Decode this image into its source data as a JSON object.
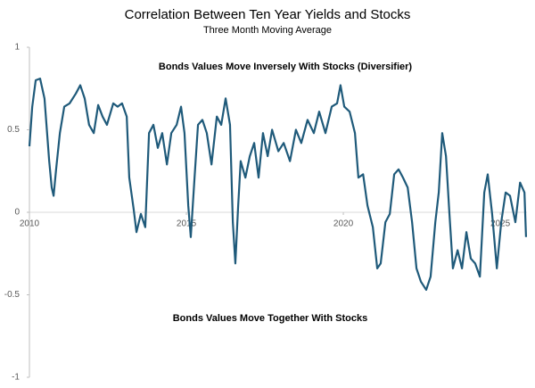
{
  "chart_data": {
    "type": "line",
    "title": "Correlation Between Ten Year Yields and Stocks",
    "subtitle": "Three Month Moving Average",
    "annotations": [
      "Bonds Values Move Inversely With Stocks (Diversifier)",
      "Bonds Values Move Together With Stocks"
    ],
    "x": [
      2010.0,
      2010.09,
      2010.2,
      2010.34,
      2010.48,
      2010.63,
      2010.71,
      2010.77,
      2010.85,
      2010.97,
      2011.11,
      2011.28,
      2011.48,
      2011.62,
      2011.76,
      2011.9,
      2012.05,
      2012.19,
      2012.33,
      2012.47,
      2012.67,
      2012.81,
      2012.95,
      2013.1,
      2013.18,
      2013.32,
      2013.41,
      2013.55,
      2013.69,
      2013.81,
      2013.95,
      2014.09,
      2014.23,
      2014.38,
      2014.52,
      2014.69,
      2014.83,
      2014.94,
      2015.06,
      2015.14,
      2015.26,
      2015.37,
      2015.51,
      2015.65,
      2015.8,
      2015.97,
      2016.11,
      2016.25,
      2016.39,
      2016.48,
      2016.56,
      2016.65,
      2016.73,
      2016.88,
      2017.02,
      2017.16,
      2017.3,
      2017.44,
      2017.59,
      2017.73,
      2017.93,
      2018.1,
      2018.3,
      2018.49,
      2018.66,
      2018.86,
      2019.06,
      2019.23,
      2019.43,
      2019.63,
      2019.8,
      2019.91,
      2020.03,
      2020.2,
      2020.37,
      2020.48,
      2020.63,
      2020.77,
      2020.94,
      2021.08,
      2021.19,
      2021.34,
      2021.48,
      2021.62,
      2021.76,
      2021.9,
      2022.05,
      2022.19,
      2022.33,
      2022.47,
      2022.64,
      2022.78,
      2022.93,
      2023.04,
      2023.15,
      2023.27,
      2023.38,
      2023.49,
      2023.64,
      2023.78,
      2023.92,
      2024.06,
      2024.2,
      2024.35,
      2024.49,
      2024.6,
      2024.74,
      2024.89,
      2025.03,
      2025.17,
      2025.31,
      2025.48,
      2025.63,
      2025.77,
      2025.82
    ],
    "series": [
      {
        "color": "#1f5a7a",
        "values": [
          0.4,
          0.64,
          0.8,
          0.81,
          0.69,
          0.31,
          0.15,
          0.1,
          0.26,
          0.48,
          0.64,
          0.66,
          0.72,
          0.77,
          0.69,
          0.53,
          0.48,
          0.65,
          0.58,
          0.53,
          0.66,
          0.64,
          0.66,
          0.58,
          0.21,
          0.02,
          -0.12,
          -0.01,
          -0.09,
          0.48,
          0.53,
          0.39,
          0.48,
          0.29,
          0.48,
          0.53,
          0.64,
          0.48,
          0.04,
          -0.15,
          0.21,
          0.53,
          0.56,
          0.48,
          0.29,
          0.58,
          0.53,
          0.69,
          0.53,
          -0.06,
          -0.31,
          0.04,
          0.31,
          0.21,
          0.34,
          0.42,
          0.21,
          0.48,
          0.34,
          0.5,
          0.37,
          0.42,
          0.31,
          0.5,
          0.42,
          0.56,
          0.48,
          0.61,
          0.48,
          0.64,
          0.66,
          0.77,
          0.64,
          0.61,
          0.48,
          0.21,
          0.23,
          0.04,
          -0.09,
          -0.34,
          -0.31,
          -0.06,
          -0.01,
          0.23,
          0.26,
          0.21,
          0.15,
          -0.06,
          -0.34,
          -0.42,
          -0.47,
          -0.39,
          -0.06,
          0.12,
          0.48,
          0.34,
          -0.01,
          -0.34,
          -0.23,
          -0.34,
          -0.12,
          -0.28,
          -0.31,
          -0.39,
          0.12,
          0.23,
          -0.01,
          -0.34,
          -0.06,
          0.12,
          0.1,
          -0.06,
          0.18,
          0.12,
          -0.15
        ]
      }
    ],
    "xlim": [
      2010,
      2025.85
    ],
    "xticks": [
      2010,
      2015,
      2020,
      2025
    ],
    "ylim": [
      -1,
      1
    ],
    "yticks": [
      -1,
      -0.5,
      0,
      0.5,
      1
    ]
  }
}
